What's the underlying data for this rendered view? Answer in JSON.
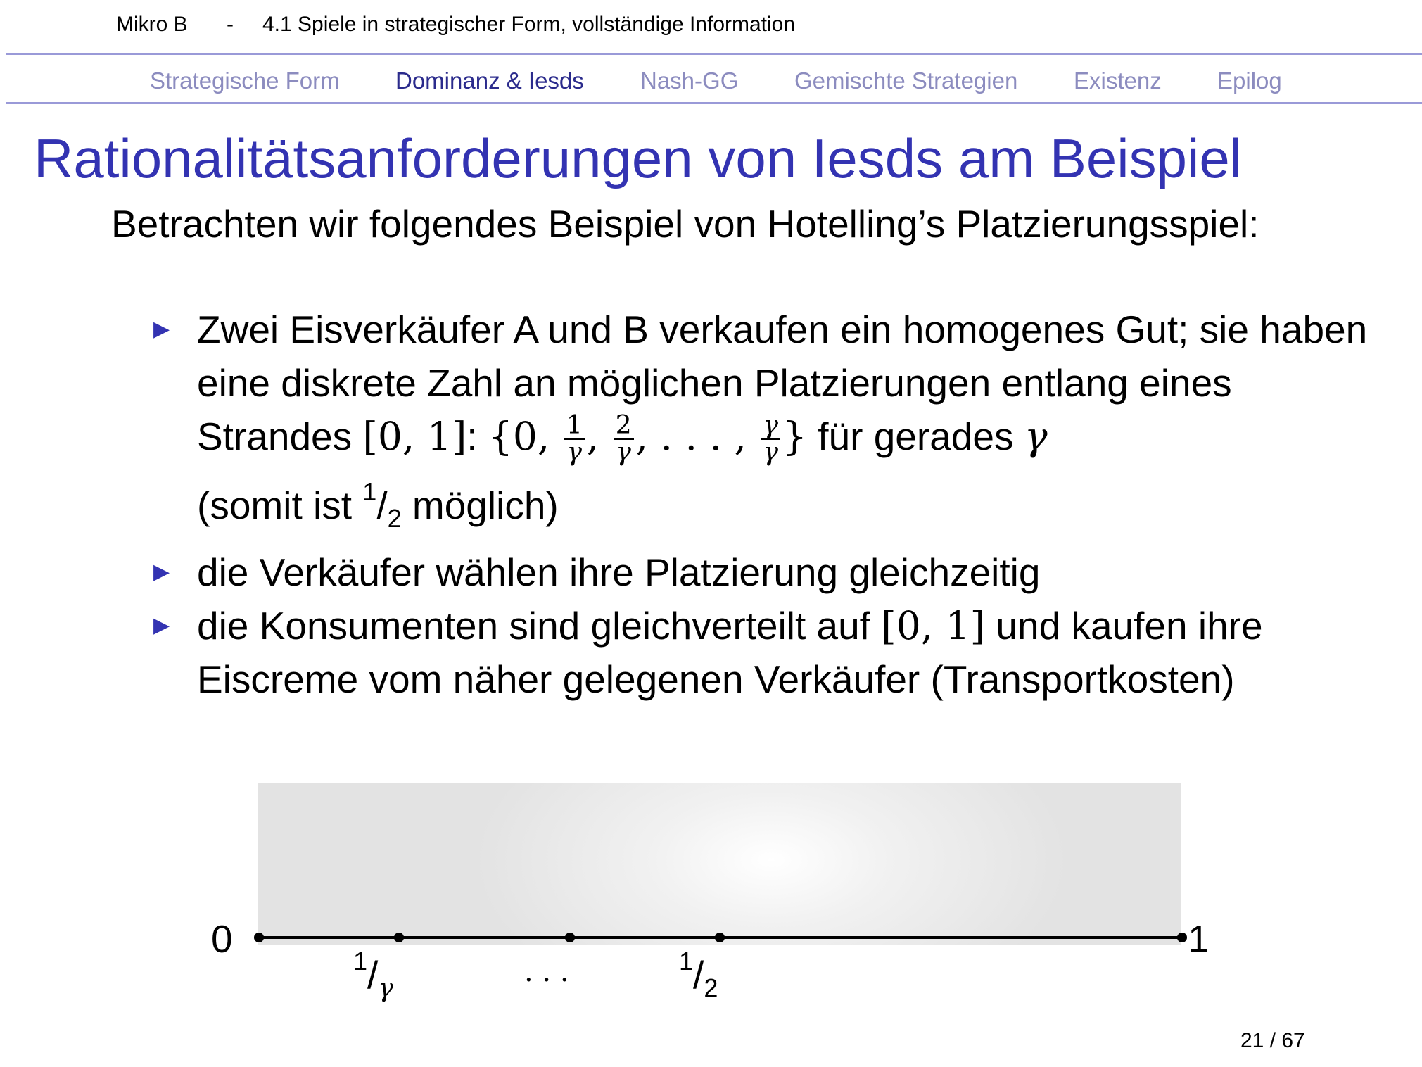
{
  "header": {
    "course": "Mikro B",
    "separator": "-",
    "section": "4.1 Spiele in strategischer Form, vollständige Information"
  },
  "nav": {
    "tabs": [
      {
        "label": "Strategische Form",
        "active": false
      },
      {
        "label": "Dominanz & Iesds",
        "active": true
      },
      {
        "label": "Nash-GG",
        "active": false
      },
      {
        "label": "Gemischte Strategien",
        "active": false
      },
      {
        "label": "Existenz",
        "active": false
      },
      {
        "label": "Epilog",
        "active": false
      }
    ]
  },
  "slide": {
    "title": "Rationalitätsanforderungen von Iesds am Beispiel",
    "intro": "Betrachten wir folgendes Beispiel von Hotelling’s Platzierungsspiel:",
    "bullets": {
      "b1": {
        "p1": "Zwei Eisverkäufer A und B verkaufen ein homogenes Gut; sie haben eine diskrete Zahl an möglichen Platzierungen entlang eines Strandes ",
        "interval": "[0, 1]",
        "colon": ": ",
        "set_open": "{0, ",
        "f1_num": "1",
        "f1_den": "γ",
        "comma1": ", ",
        "f2_num": "2",
        "f2_den": "γ",
        "dots": ", . . . , ",
        "f3_num": "γ",
        "f3_den": "γ",
        "set_close": "}",
        "p2": " für gerades ",
        "gamma": "γ",
        "p3a": "(somit ist ",
        "half_num": "1",
        "half_slash": "/",
        "half_den": "2",
        "p3b": " möglich)"
      },
      "b2": "die Verkäufer wählen ihre Platzierung gleichzeitig",
      "b3": {
        "p1": "die Konsumenten sind gleichverteilt auf ",
        "interval": "[0, 1]",
        "p2": " und kaufen ihre Eiscreme vom näher gelegenen Verkäufer (Transportkosten)"
      }
    }
  },
  "figure": {
    "left_label": "0",
    "right_label": "1",
    "tick1": {
      "num": "1",
      "slash": "/",
      "den": "γ"
    },
    "dots": ". . .",
    "tick2": {
      "num": "1",
      "slash": "/",
      "den": "2"
    }
  },
  "footer": {
    "page": "21 / 67"
  }
}
